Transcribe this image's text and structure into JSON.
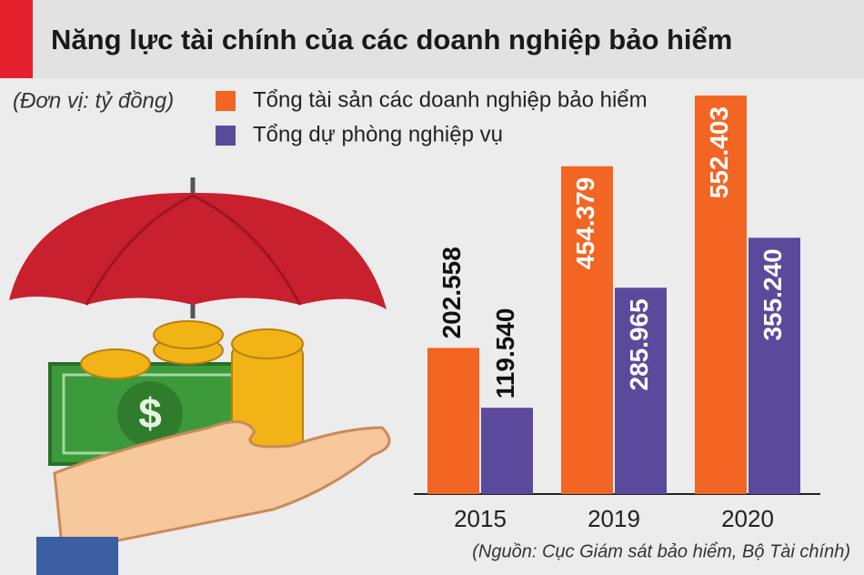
{
  "chart_data": {
    "type": "bar",
    "title": "Năng lực tài chính của các doanh nghiệp bảo hiểm",
    "unit": "(Đơn vị: tỷ đồng)",
    "source": "(Nguồn: Cục Giám sát bảo hiểm, Bộ Tài chính)",
    "categories": [
      "2015",
      "2019",
      "2020"
    ],
    "series": [
      {
        "name": "Tổng tài sản các doanh nghiệp bảo hiểm",
        "color": "#f26522",
        "values": [
          202558,
          454379,
          552403
        ],
        "value_labels": [
          "202.558",
          "454.379",
          "552.403"
        ]
      },
      {
        "name": "Tổng dự phòng nghiệp vụ",
        "color": "#5b4a9b",
        "values": [
          119540,
          285965,
          355240
        ],
        "value_labels": [
          "119.540",
          "285.965",
          "355.240"
        ]
      }
    ],
    "legend": "top-left"
  }
}
